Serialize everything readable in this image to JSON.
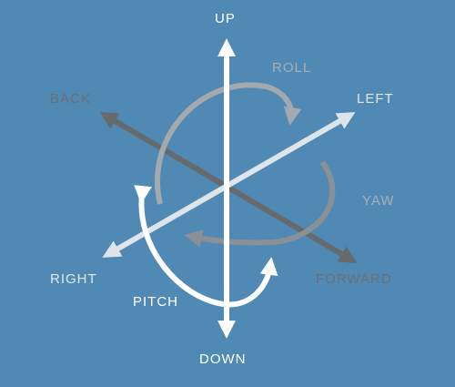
{
  "labels": {
    "up": "UP",
    "down": "DOWN",
    "left": "LEFT",
    "right": "RIGHT",
    "back": "BACK",
    "forward": "FORWARD",
    "roll": "ROLL",
    "yaw": "YAW",
    "pitch": "PITCH"
  },
  "colors": {
    "background": "#5089b3",
    "up_down_axis": "#ffffff",
    "left_right_axis": "#dde4ea",
    "back_forward_axis": "#676a6d",
    "roll_arrow": "#a3a9ae",
    "yaw_arrow": "#8a9196",
    "pitch_arrow": "#ffffff"
  }
}
